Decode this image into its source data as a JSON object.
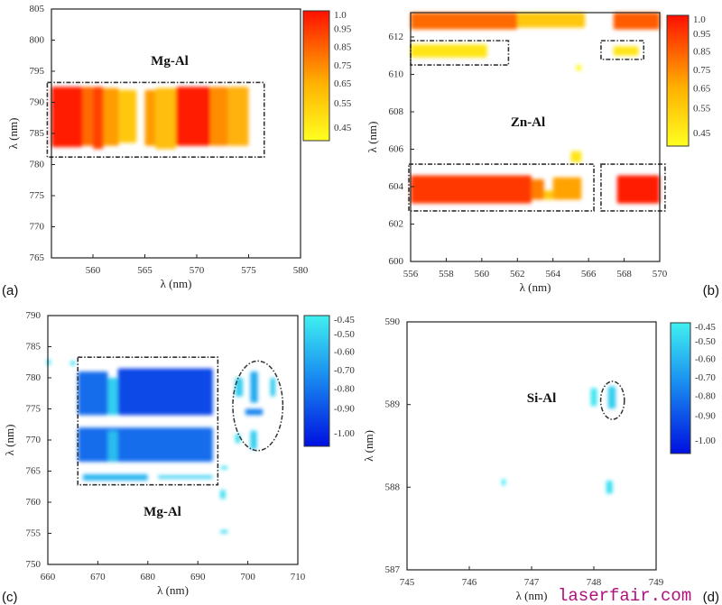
{
  "watermark": "laserfair.com",
  "chart_data": [
    {
      "type": "heatmap",
      "panel_label": "(a)",
      "title": "Mg-Al",
      "xlabel": "λ (nm)",
      "ylabel": "λ (nm)",
      "xlim": [
        556,
        580
      ],
      "ylim": [
        765,
        805
      ],
      "xticks": [
        560,
        565,
        570,
        575,
        580
      ],
      "yticks": [
        765,
        770,
        775,
        780,
        785,
        790,
        795,
        800,
        805
      ],
      "colormap": "warm",
      "colorbar_ticks": [
        "1.0",
        "0.95",
        "0.85",
        "0.75",
        "0.65",
        "0.55",
        "0.45"
      ],
      "crange": [
        0.45,
        1.0
      ],
      "colors": {
        "low": "#ffff20",
        "mid": "#ff9a00",
        "high": "#ff1000"
      },
      "blobs": [
        {
          "x": [
            556,
            559
          ],
          "y": [
            782.8,
            792.5
          ],
          "v": 0.97
        },
        {
          "x": [
            559,
            560
          ],
          "y": [
            783,
            792.5
          ],
          "v": 0.82
        },
        {
          "x": [
            560,
            561
          ],
          "y": [
            782.5,
            792.5
          ],
          "v": 0.9
        },
        {
          "x": [
            561,
            562.5
          ],
          "y": [
            783,
            792.3
          ],
          "v": 0.72
        },
        {
          "x": [
            562.5,
            564.2
          ],
          "y": [
            783.5,
            792
          ],
          "v": 0.6
        },
        {
          "x": [
            565,
            566
          ],
          "y": [
            783,
            792
          ],
          "v": 0.72
        },
        {
          "x": [
            566,
            568
          ],
          "y": [
            782.5,
            792.3
          ],
          "v": 0.63
        },
        {
          "x": [
            568,
            571.3
          ],
          "y": [
            783,
            792.5
          ],
          "v": 0.97
        },
        {
          "x": [
            571.3,
            573
          ],
          "y": [
            783,
            792.5
          ],
          "v": 0.75
        },
        {
          "x": [
            573,
            575
          ],
          "y": [
            783,
            792.5
          ],
          "v": 0.66
        }
      ],
      "boxes": [
        {
          "x": [
            555.6,
            576.5
          ],
          "y": [
            781.2,
            793.2
          ]
        }
      ],
      "ellipses": []
    },
    {
      "type": "heatmap",
      "panel_label": "(b)",
      "title": "Zn-Al",
      "xlabel": "λ (nm)",
      "ylabel": "λ (nm)",
      "xlim": [
        556,
        570
      ],
      "ylim": [
        600,
        613.3
      ],
      "xticks": [
        556,
        558,
        560,
        562,
        564,
        566,
        568,
        570
      ],
      "yticks": [
        600,
        602,
        604,
        606,
        608,
        610,
        612
      ],
      "colormap": "warm",
      "colorbar_ticks": [
        "1.0",
        "0.95",
        "0.85",
        "0.75",
        "0.65",
        "0.55",
        "0.45"
      ],
      "crange": [
        0.45,
        1.0
      ],
      "colors": {
        "low": "#ffff20",
        "mid": "#ff9a00",
        "high": "#ff1000"
      },
      "blobs": [
        {
          "x": [
            556,
            562.8
          ],
          "y": [
            603.1,
            604.6
          ],
          "v": 0.92
        },
        {
          "x": [
            562.8,
            563.5
          ],
          "y": [
            603.3,
            604.4
          ],
          "v": 0.78
        },
        {
          "x": [
            563.5,
            564
          ],
          "y": [
            603.3,
            603.8
          ],
          "v": 0.6
        },
        {
          "x": [
            564,
            565.6
          ],
          "y": [
            603.3,
            604.5
          ],
          "v": 0.7
        },
        {
          "x": [
            567.6,
            570
          ],
          "y": [
            603.1,
            604.6
          ],
          "v": 0.97
        },
        {
          "x": [
            565,
            565.6
          ],
          "y": [
            605.3,
            605.9
          ],
          "v": 0.52
        },
        {
          "x": [
            556,
            562
          ],
          "y": [
            612.4,
            613.3
          ],
          "v": 0.82
        },
        {
          "x": [
            562,
            565.8
          ],
          "y": [
            612.5,
            613.3
          ],
          "v": 0.6
        },
        {
          "x": [
            567.4,
            570
          ],
          "y": [
            612.4,
            613.3
          ],
          "v": 0.85
        },
        {
          "x": [
            556,
            560.3
          ],
          "y": [
            610.9,
            611.6
          ],
          "v": 0.52
        },
        {
          "x": [
            567.4,
            568.8
          ],
          "y": [
            611,
            611.5
          ],
          "v": 0.52
        },
        {
          "x": [
            565.3,
            565.6
          ],
          "y": [
            610.2,
            610.5
          ],
          "v": 0.47
        }
      ],
      "boxes": [
        {
          "x": [
            556,
            561.5
          ],
          "y": [
            610.5,
            611.8
          ]
        },
        {
          "x": [
            566.7,
            569.1
          ],
          "y": [
            610.8,
            611.8
          ]
        },
        {
          "x": [
            555.9,
            566.3
          ],
          "y": [
            602.7,
            605.2
          ]
        },
        {
          "x": [
            566.7,
            570.3
          ],
          "y": [
            602.7,
            605.2
          ]
        }
      ],
      "ellipses": []
    },
    {
      "type": "heatmap",
      "panel_label": "(c)",
      "title": "Mg-Al",
      "xlabel": "λ (nm)",
      "ylabel": "λ (nm)",
      "xlim": [
        660,
        710
      ],
      "ylim": [
        750,
        790
      ],
      "xticks": [
        660,
        670,
        680,
        690,
        700,
        710
      ],
      "yticks": [
        750,
        755,
        760,
        765,
        770,
        775,
        780,
        785,
        790
      ],
      "colormap": "cool",
      "colorbar_ticks": [
        "-0.45",
        "-0.50",
        "-0.60",
        "-0.70",
        "-0.80",
        "-0.90",
        "-1.00"
      ],
      "crange": [
        -1.0,
        -0.45
      ],
      "colors": {
        "low": "#0010e0",
        "mid": "#1a90f0",
        "high": "#40f0f0"
      },
      "blobs": [
        {
          "x": [
            666,
            672
          ],
          "y": [
            774,
            781
          ],
          "v": -0.8
        },
        {
          "x": [
            672,
            674
          ],
          "y": [
            774,
            780
          ],
          "v": -0.55
        },
        {
          "x": [
            674,
            693
          ],
          "y": [
            774,
            781.5
          ],
          "v": -0.88
        },
        {
          "x": [
            666,
            693
          ],
          "y": [
            766.5,
            772
          ],
          "v": -0.8
        },
        {
          "x": [
            672,
            674
          ],
          "y": [
            766.5,
            771.5
          ],
          "v": -0.6
        },
        {
          "x": [
            667,
            680
          ],
          "y": [
            763.5,
            764.5
          ],
          "v": -0.62
        },
        {
          "x": [
            682,
            693
          ],
          "y": [
            763.8,
            764.3
          ],
          "v": -0.55
        },
        {
          "x": [
            697.5,
            699
          ],
          "y": [
            777,
            780
          ],
          "v": -0.55
        },
        {
          "x": [
            700.5,
            702
          ],
          "y": [
            776,
            781
          ],
          "v": -0.65
        },
        {
          "x": [
            704.5,
            705.5
          ],
          "y": [
            777,
            780
          ],
          "v": -0.55
        },
        {
          "x": [
            699.5,
            703
          ],
          "y": [
            774,
            775
          ],
          "v": -0.75
        },
        {
          "x": [
            697.5,
            698.5
          ],
          "y": [
            769.5,
            771
          ],
          "v": -0.5
        },
        {
          "x": [
            700.5,
            701.8
          ],
          "y": [
            768.5,
            771.5
          ],
          "v": -0.55
        },
        {
          "x": [
            694.5,
            696
          ],
          "y": [
            765.3,
            765.8
          ],
          "v": -0.5
        },
        {
          "x": [
            694.5,
            695.5
          ],
          "y": [
            760.5,
            762
          ],
          "v": -0.5
        },
        {
          "x": [
            694.5,
            696
          ],
          "y": [
            755,
            755.5
          ],
          "v": -0.52
        },
        {
          "x": [
            659.8,
            660.5
          ],
          "y": [
            782,
            783
          ],
          "v": -0.5
        },
        {
          "x": [
            664.5,
            665.5
          ],
          "y": [
            782,
            782.7
          ],
          "v": -0.5
        }
      ],
      "boxes": [
        {
          "x": [
            666,
            694
          ],
          "y": [
            762.8,
            783.3
          ]
        }
      ],
      "ellipses": [
        {
          "cx": 702,
          "cy": 775.5,
          "rx": 5,
          "ry": 7.2
        }
      ]
    },
    {
      "type": "heatmap",
      "panel_label": "(d)",
      "title": "Si-Al",
      "xlabel": "λ (nm)",
      "ylabel": "λ (nm)",
      "xlim": [
        745,
        749
      ],
      "ylim": [
        587,
        590
      ],
      "xticks": [
        745,
        746,
        747,
        748,
        749
      ],
      "yticks": [
        587,
        588,
        589,
        590
      ],
      "colormap": "cool",
      "colorbar_ticks": [
        "-0.45",
        "-0.50",
        "-0.60",
        "-0.70",
        "-0.80",
        "-0.90",
        "-1.00"
      ],
      "crange": [
        -1.0,
        -0.45
      ],
      "colors": {
        "low": "#0010e0",
        "mid": "#1a90f0",
        "high": "#40f0f0"
      },
      "blobs": [
        {
          "x": [
            747.95,
            748.05
          ],
          "y": [
            588.98,
            589.2
          ],
          "v": -0.48
        },
        {
          "x": [
            748.23,
            748.35
          ],
          "y": [
            588.95,
            589.22
          ],
          "v": -0.55
        },
        {
          "x": [
            746.52,
            746.58
          ],
          "y": [
            588.02,
            588.1
          ],
          "v": -0.47
        },
        {
          "x": [
            748.2,
            748.3
          ],
          "y": [
            587.92,
            588.08
          ],
          "v": -0.5
        }
      ],
      "boxes": [],
      "ellipses": [
        {
          "cx": 748.3,
          "cy": 589.05,
          "rx": 0.19,
          "ry": 0.23
        }
      ]
    }
  ]
}
